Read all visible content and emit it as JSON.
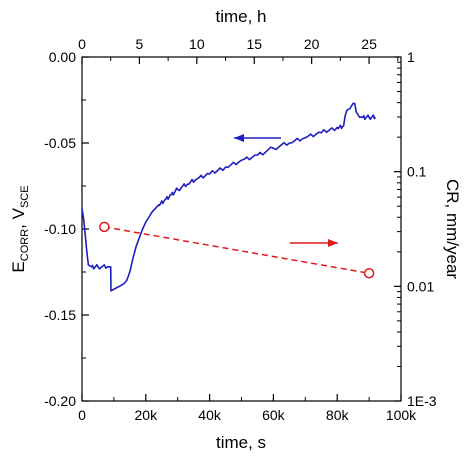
{
  "colors": {
    "ecorr_series": "#1f1fbf",
    "cr_series": "#e01b1b",
    "axis": "#000000",
    "background": "#ffffff"
  },
  "chart_data": {
    "type": "line",
    "x_bottom": {
      "label_main": "time, s",
      "range": [
        0,
        100000
      ],
      "ticks": [
        0,
        20000,
        40000,
        60000,
        80000,
        100000
      ],
      "tick_labels": [
        "0",
        "20k",
        "40k",
        "60k",
        "80k",
        "100k"
      ]
    },
    "x_top": {
      "label_main": "time, h",
      "range": [
        0,
        27.78
      ],
      "ticks": [
        0,
        5,
        10,
        15,
        20,
        25
      ],
      "tick_labels": [
        "0",
        "5",
        "10",
        "15",
        "20",
        "25"
      ]
    },
    "y_left": {
      "label_main": "E",
      "label_sub1": "CORR",
      "label_mid": ", V",
      "label_sub2": "SCE",
      "range": [
        -0.2,
        0.0
      ],
      "ticks": [
        0.0,
        -0.05,
        -0.1,
        -0.15,
        -0.2
      ],
      "tick_labels": [
        "0.00",
        "-0.05",
        "-0.10",
        "-0.15",
        "-0.20"
      ]
    },
    "y_right": {
      "label_main": "CR, mm/year",
      "scale": "log",
      "range": [
        0.001,
        1
      ],
      "ticks": [
        1,
        0.1,
        0.01,
        0.001
      ],
      "tick_labels": [
        "1",
        "0.1",
        "0.01",
        "1E-3"
      ]
    },
    "series": [
      {
        "axis": "left",
        "style": "solid",
        "x": [
          0,
          500,
          1000,
          1500,
          2000,
          3000,
          5000,
          8000,
          9000,
          9100,
          10000,
          11000,
          12000,
          13000,
          14000,
          15000,
          16000,
          17000,
          18000,
          19000,
          20000,
          21000,
          22000,
          23000,
          24000,
          26000,
          28000,
          30000,
          33000,
          36000,
          40000,
          45000,
          50000,
          55000,
          60000,
          65000,
          70000,
          75000,
          80000,
          82000,
          82500,
          83000,
          84000,
          85000,
          85500,
          86000,
          87000,
          88000,
          90000,
          92000
        ],
        "y": [
          -0.088,
          -0.094,
          -0.103,
          -0.113,
          -0.121,
          -0.122,
          -0.122,
          -0.122,
          -0.122,
          -0.136,
          -0.135,
          -0.134,
          -0.133,
          -0.132,
          -0.13,
          -0.125,
          -0.117,
          -0.11,
          -0.105,
          -0.1,
          -0.096,
          -0.093,
          -0.09,
          -0.088,
          -0.086,
          -0.083,
          -0.08,
          -0.077,
          -0.074,
          -0.071,
          -0.068,
          -0.064,
          -0.06,
          -0.057,
          -0.053,
          -0.05,
          -0.047,
          -0.044,
          -0.041,
          -0.04,
          -0.034,
          -0.031,
          -0.03,
          -0.027,
          -0.027,
          -0.032,
          -0.035,
          -0.035,
          -0.035,
          -0.035
        ]
      },
      {
        "axis": "right",
        "style": "dashed",
        "markers": "open-circle",
        "x": [
          7000,
          90000
        ],
        "y": [
          0.033,
          0.013
        ]
      }
    ],
    "annotations": [
      {
        "type": "arrow",
        "direction": "left",
        "target_series": 0
      },
      {
        "type": "arrow",
        "direction": "right",
        "target_series": 1
      }
    ]
  }
}
